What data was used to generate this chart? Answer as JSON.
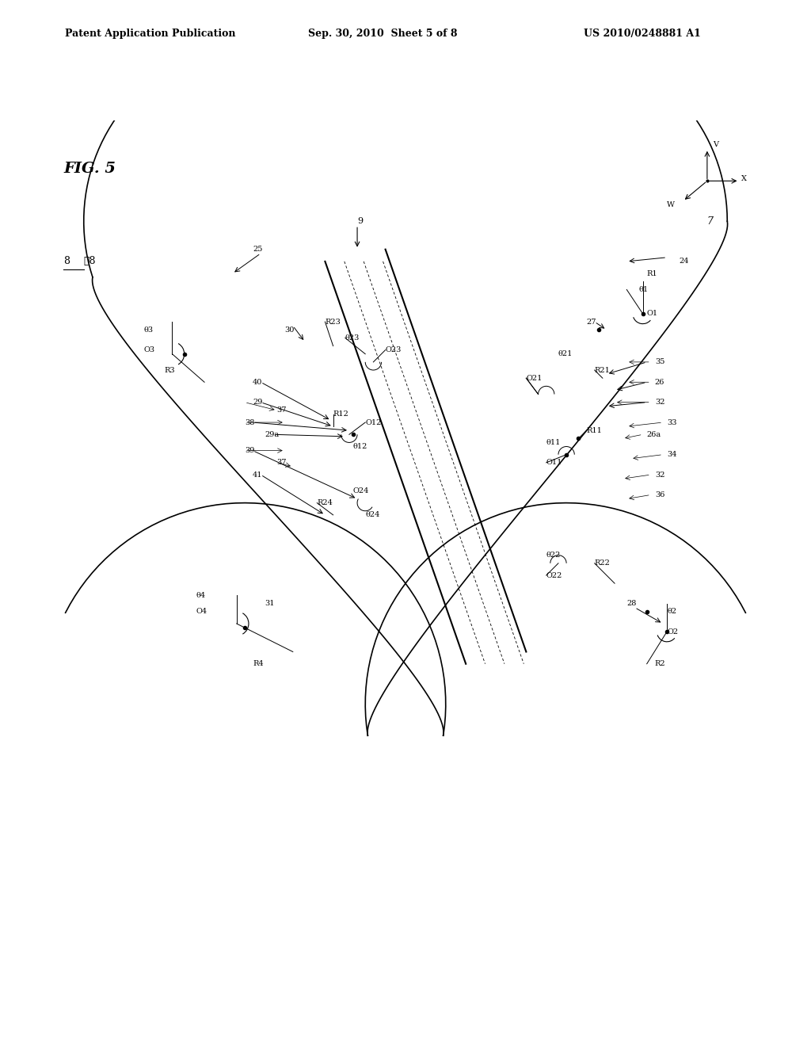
{
  "header_left": "Patent Application Publication",
  "header_center": "Sep. 30, 2010  Sheet 5 of 8",
  "header_right": "US 2010/0248881 A1",
  "figure_label": "FIG. 5",
  "background_color": "#ffffff",
  "text_color": "#000000"
}
